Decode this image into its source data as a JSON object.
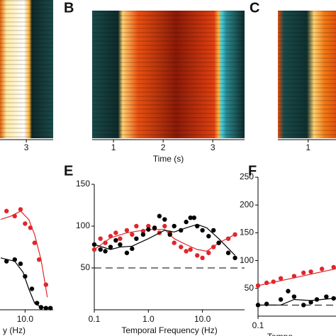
{
  "chart_data": [
    {
      "type": "heatmap",
      "xlim": [
        2.47,
        3.54
      ],
      "xticks": [
        3
      ]
    },
    {
      "type": "heatmap",
      "letter": "B",
      "xlim": [
        0.57,
        3.64
      ],
      "xticks": [
        1,
        2,
        3
      ],
      "xlabel": "Time (s)"
    },
    {
      "type": "heatmap",
      "letter": "C",
      "xlim": [
        0.39,
        1.56
      ],
      "xticks": [
        1
      ]
    },
    {
      "type": "scatter",
      "xlabel": "y (Hz)",
      "log_x": true,
      "xlim": [
        2.9,
        40
      ],
      "ylim": [
        0,
        150
      ],
      "xticks": [
        {
          "value": 10,
          "label": "10.0"
        }
      ],
      "series": [
        {
          "color": "#e0262a",
          "mode": "markers",
          "x": [
            4,
            6,
            8,
            10,
            13,
            16,
            20,
            28
          ],
          "values": [
            118,
            112,
            120,
            103,
            98,
            80,
            60,
            30
          ]
        },
        {
          "color": "#e0262a",
          "mode": "line",
          "x": [
            3,
            5,
            8,
            12,
            16,
            22,
            30
          ],
          "values": [
            108,
            112,
            118,
            108,
            90,
            60,
            15
          ]
        },
        {
          "color": "#000000",
          "mode": "markers",
          "x": [
            4,
            6,
            8,
            10,
            14,
            18,
            22,
            28,
            35
          ],
          "values": [
            58,
            60,
            55,
            40,
            25,
            8,
            3,
            2,
            2
          ]
        },
        {
          "color": "#000000",
          "mode": "line",
          "x": [
            3,
            6,
            9,
            12,
            16,
            22,
            35
          ],
          "values": [
            62,
            58,
            45,
            25,
            8,
            3,
            2
          ]
        }
      ]
    },
    {
      "type": "scatter",
      "letter": "E",
      "xlabel": "Temporal Frequency (Hz)",
      "log_x": true,
      "xlim": [
        0.1,
        60
      ],
      "ylim": [
        0,
        150
      ],
      "yticks": [
        50,
        100,
        150
      ],
      "xticks": [
        0.1,
        {
          "value": 1,
          "label": "1.0"
        },
        {
          "value": 10,
          "label": "10.0"
        }
      ],
      "hline": 50,
      "series": [
        {
          "color": "#e0262a",
          "mode": "markers",
          "x": [
            0.1,
            0.13,
            0.16,
            0.2,
            0.25,
            0.3,
            0.4,
            0.5,
            0.6,
            0.8,
            1,
            1.3,
            1.6,
            2,
            2.5,
            3,
            4,
            5,
            6,
            8,
            10,
            13,
            16,
            20,
            30,
            40
          ],
          "values": [
            72,
            85,
            80,
            88,
            92,
            85,
            95,
            90,
            100,
            94,
            100,
            97,
            92,
            100,
            92,
            80,
            75,
            70,
            72,
            65,
            62,
            68,
            75,
            80,
            85,
            90
          ]
        },
        {
          "color": "#e0262a",
          "mode": "line",
          "x": [
            0.1,
            0.2,
            0.4,
            1,
            2,
            3,
            5,
            8,
            12,
            20,
            40
          ],
          "values": [
            72,
            86,
            92,
            96,
            96,
            85,
            78,
            72,
            70,
            80,
            90
          ]
        },
        {
          "color": "#000000",
          "mode": "markers",
          "x": [
            0.1,
            0.13,
            0.16,
            0.2,
            0.25,
            0.3,
            0.4,
            0.5,
            0.6,
            0.8,
            1,
            1.3,
            1.6,
            2,
            2.5,
            3,
            4,
            5,
            6,
            7,
            8,
            10,
            13,
            16,
            20,
            30,
            40
          ],
          "values": [
            78,
            72,
            70,
            75,
            83,
            78,
            68,
            73,
            85,
            90,
            96,
            98,
            112,
            108,
            90,
            100,
            95,
            105,
            110,
            110,
            100,
            95,
            88,
            95,
            80,
            68,
            62
          ]
        },
        {
          "color": "#000000",
          "mode": "line",
          "x": [
            0.1,
            0.2,
            0.3,
            0.5,
            1,
            2,
            3,
            5,
            8,
            12,
            20,
            40
          ],
          "values": [
            78,
            72,
            75,
            76,
            85,
            95,
            93,
            98,
            102,
            98,
            85,
            65
          ]
        }
      ]
    },
    {
      "type": "scatter",
      "letter": "F",
      "xlabel": "Tempo",
      "log_x": true,
      "xlim": [
        0.1,
        2.9
      ],
      "ylim": [
        0,
        250
      ],
      "yticks": [
        50,
        100,
        150,
        200,
        250
      ],
      "xticks": [
        0.1
      ],
      "hline": 20,
      "series": [
        {
          "color": "#e0262a",
          "mode": "markers",
          "x": [
            0.1,
            0.13,
            0.16,
            0.2,
            0.3,
            0.4,
            0.5,
            0.7,
            1,
            1.3,
            2,
            2.5
          ],
          "values": [
            55,
            60,
            62,
            68,
            72,
            78,
            80,
            85,
            88,
            90,
            95,
            98
          ]
        },
        {
          "color": "#e0262a",
          "mode": "line",
          "x": [
            0.1,
            2.9
          ],
          "values": [
            55,
            98
          ]
        },
        {
          "color": "#000000",
          "mode": "markers",
          "x": [
            0.1,
            0.13,
            0.2,
            0.25,
            0.3,
            0.4,
            0.5,
            0.6,
            0.8,
            1,
            1.5,
            2
          ],
          "values": [
            20,
            22,
            30,
            45,
            35,
            20,
            25,
            30,
            35,
            32,
            35,
            40
          ]
        },
        {
          "color": "#000000",
          "mode": "line",
          "x": [
            0.1,
            0.2,
            0.3,
            0.5,
            1,
            2,
            2.9
          ],
          "values": [
            20,
            20,
            30,
            28,
            32,
            35,
            38
          ]
        }
      ]
    }
  ]
}
